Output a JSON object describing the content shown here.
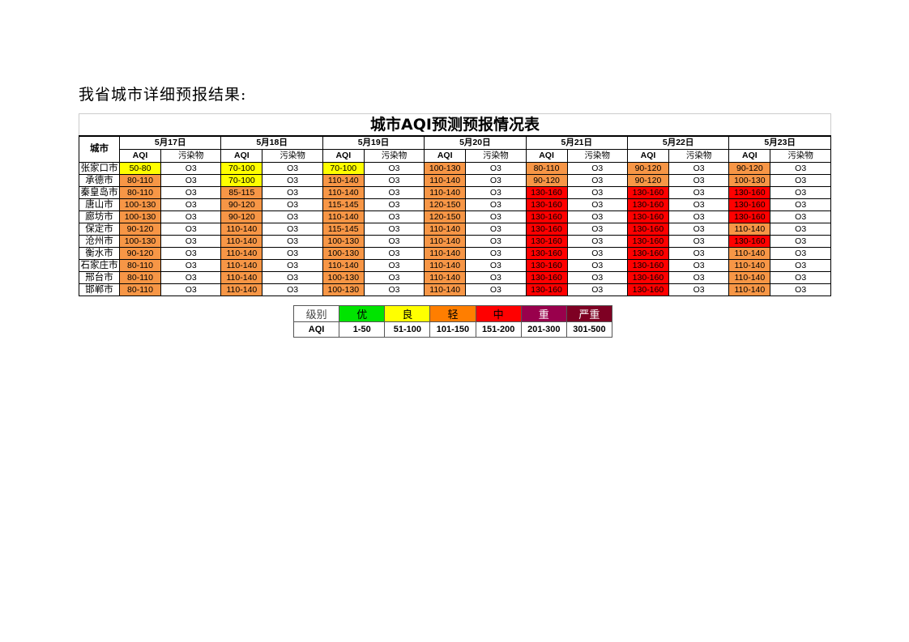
{
  "heading": "我省城市详细预报结果:",
  "table": {
    "title": "城市AQI预测预报情况表",
    "city_header": "城市",
    "aqi_header": "AQI",
    "pollutant_header": "污染物",
    "dates": [
      "5月17日",
      "5月18日",
      "5月19日",
      "5月20日",
      "5月21日",
      "5月22日",
      "5月23日"
    ],
    "level_colors": {
      "良": "#ffff00",
      "轻": "#f79646",
      "中": "#ff0000"
    },
    "rows": [
      {
        "city": "张家口市",
        "aqi": [
          "50-80",
          "70-100",
          "70-100",
          "100-130",
          "80-110",
          "90-120",
          "90-120"
        ],
        "level": [
          "良",
          "良",
          "良",
          "轻",
          "轻",
          "轻",
          "轻"
        ],
        "pollutant": [
          "O3",
          "O3",
          "O3",
          "O3",
          "O3",
          "O3",
          "O3"
        ]
      },
      {
        "city": "承德市",
        "aqi": [
          "80-110",
          "70-100",
          "110-140",
          "110-140",
          "90-120",
          "90-120",
          "100-130"
        ],
        "level": [
          "轻",
          "良",
          "轻",
          "轻",
          "轻",
          "轻",
          "轻"
        ],
        "pollutant": [
          "O3",
          "O3",
          "O3",
          "O3",
          "O3",
          "O3",
          "O3"
        ]
      },
      {
        "city": "秦皇岛市",
        "aqi": [
          "80-110",
          "85-115",
          "110-140",
          "110-140",
          "130-160",
          "130-160",
          "130-160"
        ],
        "level": [
          "轻",
          "轻",
          "轻",
          "轻",
          "中",
          "中",
          "中"
        ],
        "pollutant": [
          "O3",
          "O3",
          "O3",
          "O3",
          "O3",
          "O3",
          "O3"
        ]
      },
      {
        "city": "唐山市",
        "aqi": [
          "100-130",
          "90-120",
          "115-145",
          "120-150",
          "130-160",
          "130-160",
          "130-160"
        ],
        "level": [
          "轻",
          "轻",
          "轻",
          "轻",
          "中",
          "中",
          "中"
        ],
        "pollutant": [
          "O3",
          "O3",
          "O3",
          "O3",
          "O3",
          "O3",
          "O3"
        ]
      },
      {
        "city": "廊坊市",
        "aqi": [
          "100-130",
          "90-120",
          "110-140",
          "120-150",
          "130-160",
          "130-160",
          "130-160"
        ],
        "level": [
          "轻",
          "轻",
          "轻",
          "轻",
          "中",
          "中",
          "中"
        ],
        "pollutant": [
          "O3",
          "O3",
          "O3",
          "O3",
          "O3",
          "O3",
          "O3"
        ]
      },
      {
        "city": "保定市",
        "aqi": [
          "90-120",
          "110-140",
          "115-145",
          "110-140",
          "130-160",
          "130-160",
          "110-140"
        ],
        "level": [
          "轻",
          "轻",
          "轻",
          "轻",
          "中",
          "中",
          "轻"
        ],
        "pollutant": [
          "O3",
          "O3",
          "O3",
          "O3",
          "O3",
          "O3",
          "O3"
        ]
      },
      {
        "city": "沧州市",
        "aqi": [
          "100-130",
          "110-140",
          "100-130",
          "110-140",
          "130-160",
          "130-160",
          "130-160"
        ],
        "level": [
          "轻",
          "轻",
          "轻",
          "轻",
          "中",
          "中",
          "中"
        ],
        "pollutant": [
          "O3",
          "O3",
          "O3",
          "O3",
          "O3",
          "O3",
          "O3"
        ]
      },
      {
        "city": "衡水市",
        "aqi": [
          "90-120",
          "110-140",
          "100-130",
          "110-140",
          "130-160",
          "130-160",
          "110-140"
        ],
        "level": [
          "轻",
          "轻",
          "轻",
          "轻",
          "中",
          "中",
          "轻"
        ],
        "pollutant": [
          "O3",
          "O3",
          "O3",
          "O3",
          "O3",
          "O3",
          "O3"
        ]
      },
      {
        "city": "石家庄市",
        "aqi": [
          "80-110",
          "110-140",
          "110-140",
          "110-140",
          "130-160",
          "130-160",
          "110-140"
        ],
        "level": [
          "轻",
          "轻",
          "轻",
          "轻",
          "中",
          "中",
          "轻"
        ],
        "pollutant": [
          "O3",
          "O3",
          "O3",
          "O3",
          "O3",
          "O3",
          "O3"
        ]
      },
      {
        "city": "邢台市",
        "aqi": [
          "80-110",
          "110-140",
          "100-130",
          "110-140",
          "130-160",
          "130-160",
          "110-140"
        ],
        "level": [
          "轻",
          "轻",
          "轻",
          "轻",
          "中",
          "中",
          "轻"
        ],
        "pollutant": [
          "O3",
          "O3",
          "O3",
          "O3",
          "O3",
          "O3",
          "O3"
        ]
      },
      {
        "city": "邯郸市",
        "aqi": [
          "80-110",
          "110-140",
          "100-130",
          "110-140",
          "130-160",
          "130-160",
          "110-140"
        ],
        "level": [
          "轻",
          "轻",
          "轻",
          "轻",
          "中",
          "中",
          "轻"
        ],
        "pollutant": [
          "O3",
          "O3",
          "O3",
          "O3",
          "O3",
          "O3",
          "O3"
        ]
      }
    ]
  },
  "legend": {
    "level_label": "级别",
    "aqi_label": "AQI",
    "levels": [
      {
        "name": "优",
        "range": "1-50",
        "color": "#00e400",
        "text": "#000000"
      },
      {
        "name": "良",
        "range": "51-100",
        "color": "#ffff00",
        "text": "#000000"
      },
      {
        "name": "轻",
        "range": "101-150",
        "color": "#ff7e00",
        "text": "#000000"
      },
      {
        "name": "中",
        "range": "151-200",
        "color": "#ff0000",
        "text": "#000000"
      },
      {
        "name": "重",
        "range": "201-300",
        "color": "#99004c",
        "text": "#ffffff"
      },
      {
        "name": "严重",
        "range": "301-500",
        "color": "#7e0023",
        "text": "#ffffff"
      }
    ]
  }
}
